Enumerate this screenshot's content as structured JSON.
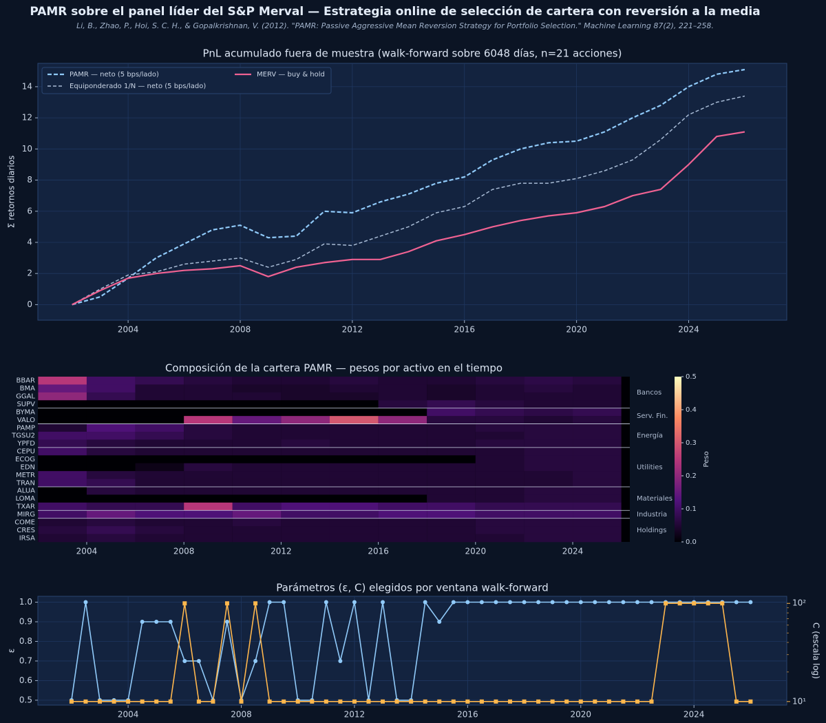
{
  "title": "PAMR sobre el panel líder del S&P Merval — Estrategia online de selección de cartera con reversión a la media",
  "subtitle": "Li, B., Zhao, P., Hoi, S. C. H., & Gopalkrishnan, V. (2012). \"PAMR: Passive Aggressive Mean Reversion Strategy for Portfolio Selection.\" Machine Learning 87(2), 221–258.",
  "chart_data": [
    {
      "type": "line",
      "title": "PnL acumulado fuera de muestra  (walk-forward sobre 6048 días, n=21 acciones)",
      "y_label": "Σ retornos diarios",
      "x": [
        2002,
        2003,
        2004,
        2005,
        2006,
        2007,
        2008,
        2009,
        2010,
        2011,
        2012,
        2013,
        2014,
        2015,
        2016,
        2017,
        2018,
        2019,
        2020,
        2021,
        2022,
        2023,
        2024,
        2025,
        2026
      ],
      "series": [
        {
          "name": "PAMR — neto (5 bps/lado)",
          "color": "#90caf9",
          "dash": "6 3",
          "width": 2.2,
          "values": [
            0,
            0.5,
            1.7,
            3.0,
            3.9,
            4.8,
            5.1,
            4.3,
            4.4,
            6.0,
            5.9,
            6.6,
            7.1,
            7.8,
            8.2,
            9.3,
            10.0,
            10.4,
            10.5,
            11.1,
            12.0,
            12.8,
            14.0,
            14.8,
            15.1
          ]
        },
        {
          "name": "Equiponderado 1/N — neto (5 bps/lado)",
          "color": "#a9bcd6",
          "dash": "5 3",
          "width": 1.5,
          "values": [
            0,
            1.0,
            1.9,
            2.1,
            2.6,
            2.8,
            3.0,
            2.4,
            2.9,
            3.9,
            3.8,
            4.4,
            5.0,
            5.9,
            6.3,
            7.4,
            7.8,
            7.8,
            8.1,
            8.6,
            9.3,
            10.6,
            12.2,
            13.0,
            13.4
          ]
        },
        {
          "name": "MERV — buy & hold",
          "color": "#f06292",
          "dash": "none",
          "width": 2.2,
          "values": [
            0,
            0.9,
            1.7,
            2.0,
            2.2,
            2.3,
            2.5,
            1.8,
            2.4,
            2.7,
            2.9,
            2.9,
            3.4,
            4.1,
            4.5,
            5.0,
            5.4,
            5.7,
            5.9,
            6.3,
            7.0,
            7.4,
            9.0,
            10.8,
            11.1
          ]
        }
      ],
      "xlim": [
        2000.78,
        2027.5
      ],
      "xticks": [
        2004,
        2008,
        2012,
        2016,
        2020,
        2024
      ],
      "ylim": [
        -1,
        15.5
      ],
      "yticks": [
        0,
        2,
        4,
        6,
        8,
        10,
        12,
        14
      ],
      "grid": true,
      "legend": "upper-left"
    },
    {
      "type": "heatmap",
      "title": "Composición de la cartera PAMR — pesos por activo en el tiempo",
      "colorbar_label": "Peso",
      "colormap": "magma",
      "x_edges": [
        2002,
        2004,
        2006,
        2008,
        2010,
        2012,
        2014,
        2016,
        2018,
        2020,
        2022,
        2024,
        2026
      ],
      "rows": [
        {
          "name": "BBAR",
          "sector": "Bancos",
          "values": [
            0.25,
            0.1,
            0.08,
            0.06,
            0.05,
            0.05,
            0.06,
            0.05,
            0.05,
            0.06,
            0.07,
            0.06
          ]
        },
        {
          "name": "BMA",
          "sector": "Bancos",
          "values": [
            0.15,
            0.1,
            0.05,
            0.05,
            0.04,
            0.04,
            0.05,
            0.05,
            0.04,
            0.05,
            0.06,
            0.05
          ]
        },
        {
          "name": "GGAL",
          "sector": "Bancos",
          "values": [
            0.2,
            0.08,
            0.05,
            0.05,
            0.05,
            0.04,
            0.04,
            0.05,
            0.04,
            0.05,
            0.05,
            0.05
          ]
        },
        {
          "name": "SUPV",
          "sector": "Bancos",
          "values": [
            0,
            0,
            0,
            0,
            0,
            0,
            0,
            0.06,
            0.08,
            0.06,
            0.05,
            0.05
          ]
        },
        {
          "name": "BYMA",
          "sector": "Serv. Fin.",
          "values": [
            0,
            0,
            0,
            0,
            0,
            0,
            0,
            0,
            0.1,
            0.08,
            0.07,
            0.08
          ]
        },
        {
          "name": "VALO",
          "sector": "Serv. Fin.",
          "values": [
            0,
            0,
            0,
            0.25,
            0.15,
            0.2,
            0.3,
            0.2,
            0.06,
            0.06,
            0.05,
            0.06
          ]
        },
        {
          "name": "PAMP",
          "sector": "Energía",
          "values": [
            0.05,
            0.12,
            0.1,
            0.06,
            0.05,
            0.05,
            0.05,
            0.05,
            0.05,
            0.06,
            0.06,
            0.06
          ]
        },
        {
          "name": "TGSU2",
          "sector": "Energía",
          "values": [
            0.1,
            0.1,
            0.08,
            0.06,
            0.05,
            0.05,
            0.05,
            0.05,
            0.05,
            0.05,
            0.06,
            0.06
          ]
        },
        {
          "name": "YPFD",
          "sector": "Energía",
          "values": [
            0.08,
            0.06,
            0.05,
            0.05,
            0.05,
            0.06,
            0.05,
            0.05,
            0.05,
            0.06,
            0.06,
            0.06
          ]
        },
        {
          "name": "CEPU",
          "sector": "Utilities",
          "values": [
            0.1,
            0.06,
            0.05,
            0.05,
            0.05,
            0.05,
            0.05,
            0.05,
            0.05,
            0.05,
            0.06,
            0.06
          ]
        },
        {
          "name": "ECOG",
          "sector": "Utilities",
          "values": [
            0,
            0,
            0,
            0,
            0,
            0,
            0,
            0,
            0,
            0.05,
            0.06,
            0.06
          ]
        },
        {
          "name": "EDN",
          "sector": "Utilities",
          "values": [
            0,
            0,
            0.02,
            0.06,
            0.05,
            0.05,
            0.05,
            0.05,
            0.05,
            0.05,
            0.06,
            0.06
          ]
        },
        {
          "name": "METR",
          "sector": "Utilities",
          "values": [
            0.1,
            0.06,
            0.05,
            0.05,
            0.05,
            0.05,
            0.05,
            0.05,
            0.05,
            0.05,
            0.05,
            0.06
          ]
        },
        {
          "name": "TRAN",
          "sector": "Utilities",
          "values": [
            0.1,
            0.08,
            0.05,
            0.05,
            0.05,
            0.05,
            0.05,
            0.05,
            0.05,
            0.05,
            0.05,
            0.06
          ]
        },
        {
          "name": "ALUA",
          "sector": "Materiales",
          "values": [
            0,
            0.06,
            0.05,
            0.05,
            0.05,
            0.05,
            0.05,
            0.05,
            0.05,
            0.05,
            0.06,
            0.06
          ]
        },
        {
          "name": "LOMA",
          "sector": "Materiales",
          "values": [
            0,
            0,
            0,
            0,
            0,
            0,
            0,
            0,
            0.05,
            0.05,
            0.06,
            0.06
          ]
        },
        {
          "name": "TXAR",
          "sector": "Materiales",
          "values": [
            0.1,
            0.08,
            0.08,
            0.25,
            0.1,
            0.12,
            0.12,
            0.1,
            0.1,
            0.08,
            0.08,
            0.08
          ]
        },
        {
          "name": "MIRG",
          "sector": "Industria",
          "values": [
            0.1,
            0.15,
            0.12,
            0.12,
            0.15,
            0.1,
            0.1,
            0.12,
            0.12,
            0.1,
            0.1,
            0.1
          ]
        },
        {
          "name": "COME",
          "sector": "Holdings",
          "values": [
            0.05,
            0.06,
            0.05,
            0.05,
            0.06,
            0.05,
            0.05,
            0.05,
            0.05,
            0.06,
            0.06,
            0.06
          ]
        },
        {
          "name": "CRES",
          "sector": "Holdings",
          "values": [
            0.06,
            0.08,
            0.06,
            0.05,
            0.05,
            0.05,
            0.05,
            0.05,
            0.05,
            0.06,
            0.06,
            0.06
          ]
        },
        {
          "name": "IRSA",
          "sector": "Holdings",
          "values": [
            0.05,
            0.06,
            0.05,
            0.05,
            0.05,
            0.05,
            0.05,
            0.05,
            0.05,
            0.05,
            0.06,
            0.06
          ]
        }
      ],
      "xlim": [
        2001.99,
        2026.35
      ],
      "xticks": [
        2004,
        2008,
        2012,
        2016,
        2020,
        2024
      ],
      "clim": [
        0,
        0.5
      ],
      "cticks": [
        {
          "value": 0,
          "label": "0.0"
        },
        0.1,
        0.2,
        0.3,
        0.4,
        0.5
      ]
    },
    {
      "type": "line",
      "title": "Parámetros (ε, C) elegidos por ventana walk-forward",
      "y_label": "ε",
      "y2_label": "C (escala log)",
      "x": [
        2002,
        2002.5,
        2003,
        2003.5,
        2004,
        2004.5,
        2005,
        2005.5,
        2006,
        2006.5,
        2007,
        2007.5,
        2008,
        2008.5,
        2009,
        2009.5,
        2010,
        2010.5,
        2011,
        2011.5,
        2012,
        2012.5,
        2013,
        2013.5,
        2014,
        2014.5,
        2015,
        2015.5,
        2016,
        2016.5,
        2017,
        2017.5,
        2018,
        2018.5,
        2019,
        2019.5,
        2020,
        2020.5,
        2021,
        2021.5,
        2022,
        2022.5,
        2023,
        2023.5,
        2024,
        2024.5,
        2025,
        2025.5,
        2026
      ],
      "series": [
        {
          "name": "ε",
          "color": "#90caf9",
          "marker": "circle",
          "values": [
            0.5,
            1.0,
            0.5,
            0.5,
            0.5,
            0.9,
            0.9,
            0.9,
            0.7,
            0.7,
            0.5,
            0.9,
            0.5,
            0.7,
            1.0,
            1.0,
            0.5,
            0.5,
            1.0,
            0.7,
            1.0,
            0.5,
            1.0,
            0.5,
            0.5,
            1.0,
            0.9,
            1.0,
            1.0,
            1.0,
            1.0,
            1.0,
            1.0,
            1.0,
            1.0,
            1.0,
            1.0,
            1.0,
            1.0,
            1.0,
            1.0,
            1.0,
            1.0,
            1.0,
            1.0,
            1.0,
            1.0,
            1.0,
            1.0
          ]
        },
        {
          "name": "C",
          "color": "#ffb74d",
          "marker": "square",
          "axis": "y2",
          "values": [
            10,
            10,
            10,
            10,
            10,
            10,
            10,
            10,
            100,
            10,
            10,
            100,
            10,
            100,
            10,
            10,
            10,
            10,
            10,
            10,
            10,
            10,
            10,
            10,
            10,
            10,
            10,
            10,
            10,
            10,
            10,
            10,
            10,
            10,
            10,
            10,
            10,
            10,
            10,
            10,
            10,
            10,
            100,
            100,
            100,
            100,
            100,
            10,
            10
          ]
        }
      ],
      "xlim": [
        2000.81,
        2027.28
      ],
      "xticks": [
        2004,
        2008,
        2012,
        2016,
        2020,
        2024
      ],
      "ylim": [
        0.475,
        1.03
      ],
      "yticks": [
        0.5,
        0.6,
        0.7,
        0.8,
        0.9,
        {
          "value": 1,
          "label": "1.0"
        }
      ],
      "y2lim": [
        9.2,
        118
      ],
      "y2scale": "log",
      "y2ticks": [
        {
          "value": 10,
          "label": "10¹"
        },
        {
          "value": 100,
          "label": "10²"
        }
      ],
      "grid": true
    }
  ]
}
